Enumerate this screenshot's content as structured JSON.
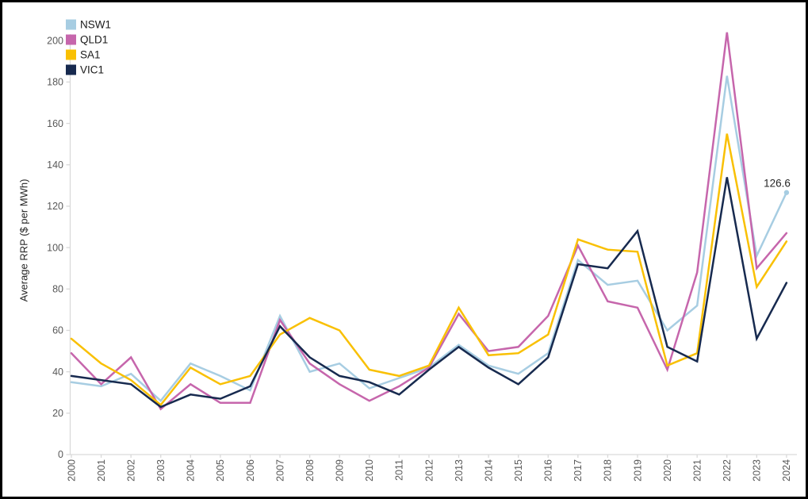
{
  "chart_data": {
    "type": "line",
    "title": "",
    "ylabel": "Average RRP ($ per MWh)",
    "xlabel": "",
    "ylim": [
      0,
      200
    ],
    "ytick_step": 20,
    "grid": false,
    "legend_position": "top-left",
    "categories": [
      "2000",
      "2001",
      "2002",
      "2003",
      "2004",
      "2005",
      "2006",
      "2007",
      "2008",
      "2009",
      "2010",
      "2011",
      "2012",
      "2013",
      "2014",
      "2015",
      "2016",
      "2017",
      "2018",
      "2019",
      "2020",
      "2021",
      "2022",
      "2023",
      "2024"
    ],
    "series": [
      {
        "name": "NSW1",
        "color": "#a7cde2",
        "values": [
          35,
          33,
          39,
          26,
          44,
          38,
          31,
          67,
          40,
          44,
          32,
          37,
          42,
          53,
          43,
          39,
          49,
          94,
          82,
          84,
          60,
          72,
          183,
          96,
          126.6
        ]
      },
      {
        "name": "QLD1",
        "color": "#c666ac",
        "values": [
          49,
          34,
          47,
          22,
          34,
          25,
          25,
          65,
          44,
          34,
          26,
          33,
          42,
          68,
          50,
          52,
          67,
          101,
          74,
          71,
          41,
          88,
          204,
          90,
          107
        ]
      },
      {
        "name": "SA1",
        "color": "#f9c003",
        "values": [
          56,
          44,
          36,
          24,
          42,
          34,
          38,
          58,
          66,
          60,
          41,
          38,
          43,
          71,
          48,
          49,
          58,
          104,
          99,
          98,
          43,
          49,
          155,
          81,
          103
        ]
      },
      {
        "name": "VIC1",
        "color": "#172a4f",
        "values": [
          38,
          36,
          34,
          23,
          29,
          27,
          33,
          62,
          47,
          38,
          35,
          29,
          41,
          52,
          42,
          34,
          47,
          92,
          90,
          108,
          52,
          45,
          134,
          56,
          83
        ]
      }
    ],
    "annotation": {
      "series": "NSW1",
      "category": "2024",
      "label": "126.6"
    },
    "axis_color": "#d9d9d9",
    "tick_label_color": "#595959",
    "annotation_color": "#262626",
    "legend_text_color": "#1a1a1a"
  }
}
